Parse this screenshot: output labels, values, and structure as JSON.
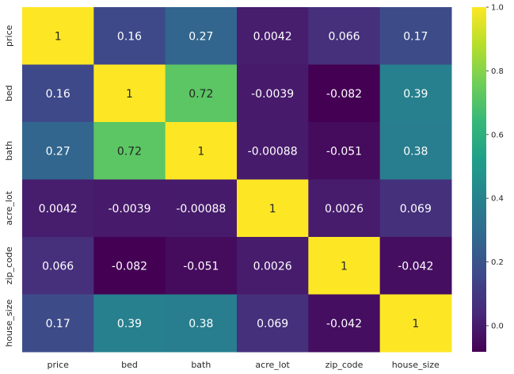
{
  "chart_data": {
    "type": "heatmap",
    "title": "",
    "xlabel": "",
    "ylabel": "",
    "x_categories": [
      "price",
      "bed",
      "bath",
      "acre_lot",
      "zip_code",
      "house_size"
    ],
    "y_categories": [
      "price",
      "bed",
      "bath",
      "acre_lot",
      "zip_code",
      "house_size"
    ],
    "values": [
      [
        1,
        0.16,
        0.27,
        0.0042,
        0.066,
        0.17
      ],
      [
        0.16,
        1,
        0.72,
        -0.0039,
        -0.082,
        0.39
      ],
      [
        0.27,
        0.72,
        1,
        -0.00088,
        -0.051,
        0.38
      ],
      [
        0.0042,
        -0.0039,
        -0.00088,
        1,
        0.0026,
        0.069
      ],
      [
        0.066,
        -0.082,
        -0.051,
        0.0026,
        1,
        -0.042
      ],
      [
        0.17,
        0.39,
        0.38,
        0.069,
        -0.042,
        1
      ]
    ],
    "cell_labels": [
      [
        "1",
        "0.16",
        "0.27",
        "0.0042",
        "0.066",
        "0.17"
      ],
      [
        "0.16",
        "1",
        "0.72",
        "-0.0039",
        "-0.082",
        "0.39"
      ],
      [
        "0.27",
        "0.72",
        "1",
        "-0.00088",
        "-0.051",
        "0.38"
      ],
      [
        "0.0042",
        "-0.0039",
        "-0.00088",
        "1",
        "0.0026",
        "0.069"
      ],
      [
        "0.066",
        "-0.082",
        "-0.051",
        "0.0026",
        "1",
        "-0.042"
      ],
      [
        "0.17",
        "0.39",
        "0.38",
        "0.069",
        "-0.042",
        "1"
      ]
    ],
    "colormap": "viridis",
    "colorbar": {
      "range": [
        -0.082,
        1.0
      ],
      "ticks": [
        0.0,
        0.2,
        0.4,
        0.6,
        0.8,
        1.0
      ],
      "tick_labels": [
        "0.0",
        "0.2",
        "0.4",
        "0.6",
        "0.8",
        "1.0"
      ]
    },
    "grid": false,
    "colors": {
      "viridis_stops": [
        "#440154",
        "#482878",
        "#3e4989",
        "#31688e",
        "#26828e",
        "#1f9e89",
        "#35b779",
        "#6ece58",
        "#b5de2b",
        "#fde725"
      ],
      "label_dark": "#262626",
      "label_light": "#ffffff"
    }
  }
}
